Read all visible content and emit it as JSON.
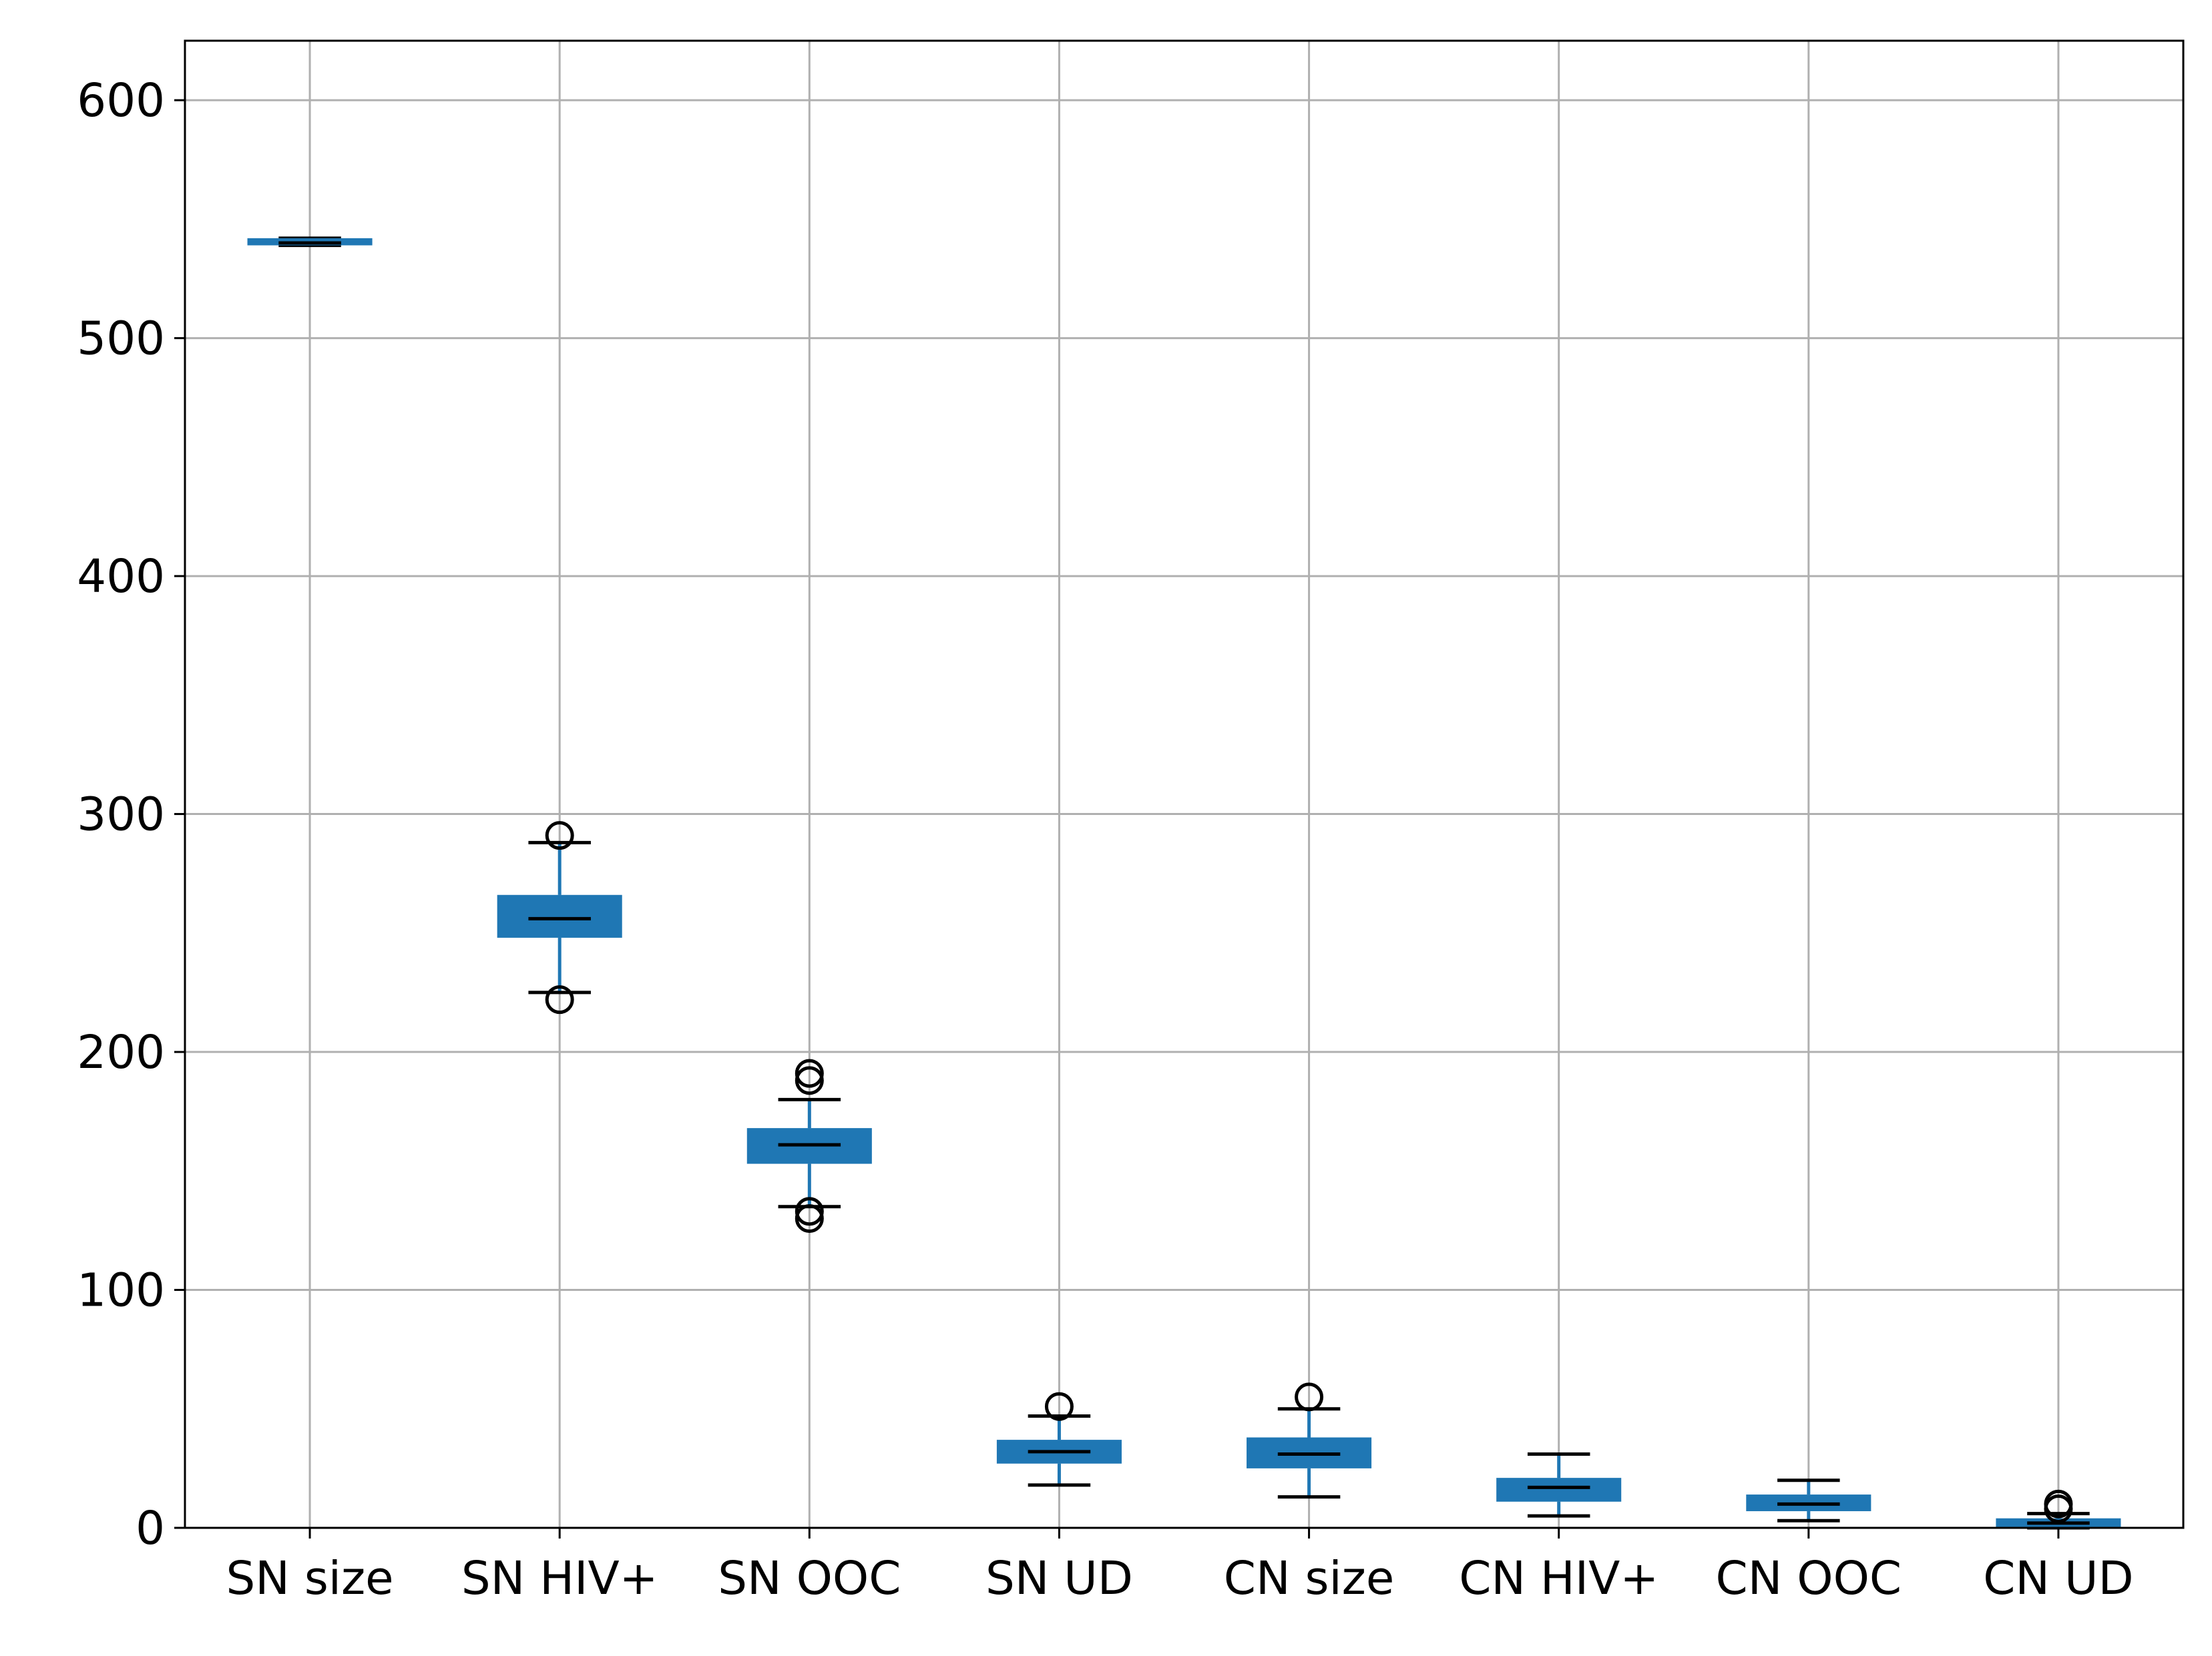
{
  "chart_data": {
    "type": "box",
    "title": "",
    "xlabel": "",
    "ylabel": "",
    "ylim": [
      0,
      625
    ],
    "yticks": [
      0,
      100,
      200,
      300,
      400,
      500,
      600
    ],
    "grid": true,
    "legend": "none",
    "colors": {
      "box": "#1f77b4",
      "median": "#000000",
      "whisker": "#1f77b4",
      "cap": "#000000",
      "flier": "#000000",
      "grid": "#b0b0b0",
      "frame": "#000000"
    },
    "categories": [
      "SN size",
      "SN HIV+",
      "SN OOC",
      "SN UD",
      "CN size",
      "CN HIV+",
      "CN OOC",
      "CN UD"
    ],
    "boxes": [
      {
        "label": "SN size",
        "whislo": 539,
        "q1": 539,
        "med": 540,
        "q3": 542,
        "whishi": 542,
        "fliers": []
      },
      {
        "label": "SN HIV+",
        "whislo": 225,
        "q1": 248,
        "med": 256,
        "q3": 266,
        "whishi": 288,
        "fliers": [
          291,
          222
        ]
      },
      {
        "label": "SN OOC",
        "whislo": 135,
        "q1": 153,
        "med": 161,
        "q3": 168,
        "whishi": 180,
        "fliers": [
          191,
          188,
          133,
          130
        ]
      },
      {
        "label": "SN UD",
        "whislo": 18,
        "q1": 27,
        "med": 32,
        "q3": 37,
        "whishi": 47,
        "fliers": [
          51
        ]
      },
      {
        "label": "CN size",
        "whislo": 13,
        "q1": 25,
        "med": 31,
        "q3": 38,
        "whishi": 50,
        "fliers": [
          55
        ]
      },
      {
        "label": "CN HIV+",
        "whislo": 5,
        "q1": 11,
        "med": 17,
        "q3": 21,
        "whishi": 31,
        "fliers": []
      },
      {
        "label": "CN OOC",
        "whislo": 3,
        "q1": 7,
        "med": 10,
        "q3": 14,
        "whishi": 20,
        "fliers": []
      },
      {
        "label": "CN UD",
        "whislo": 0,
        "q1": 0,
        "med": 2,
        "q3": 4,
        "whishi": 6,
        "fliers": [
          10,
          8
        ]
      }
    ]
  }
}
